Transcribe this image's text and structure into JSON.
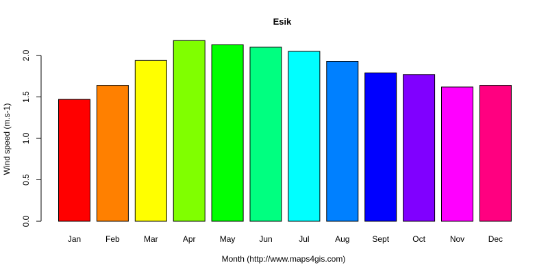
{
  "chart_data": {
    "type": "bar",
    "title": "Esik",
    "xlabel": "Month (http://www.maps4gis.com)",
    "ylabel": "Wind speed (m.s-1)",
    "categories": [
      "Jan",
      "Feb",
      "Mar",
      "Apr",
      "May",
      "Jun",
      "Jul",
      "Aug",
      "Sept",
      "Oct",
      "Nov",
      "Dec"
    ],
    "values": [
      1.47,
      1.64,
      1.94,
      2.18,
      2.13,
      2.1,
      2.05,
      1.93,
      1.79,
      1.77,
      1.62,
      1.64
    ],
    "colors": [
      "#FF0000",
      "#FF8000",
      "#FFFF00",
      "#80FF00",
      "#00FF00",
      "#00FF80",
      "#00FFFF",
      "#0080FF",
      "#0000FF",
      "#8000FF",
      "#FF00FF",
      "#FF0080"
    ],
    "yticks": [
      "0.0",
      "0.5",
      "1.0",
      "1.5",
      "2.0"
    ],
    "ylim": [
      0,
      2.2
    ],
    "grid": false,
    "legend": "none"
  }
}
